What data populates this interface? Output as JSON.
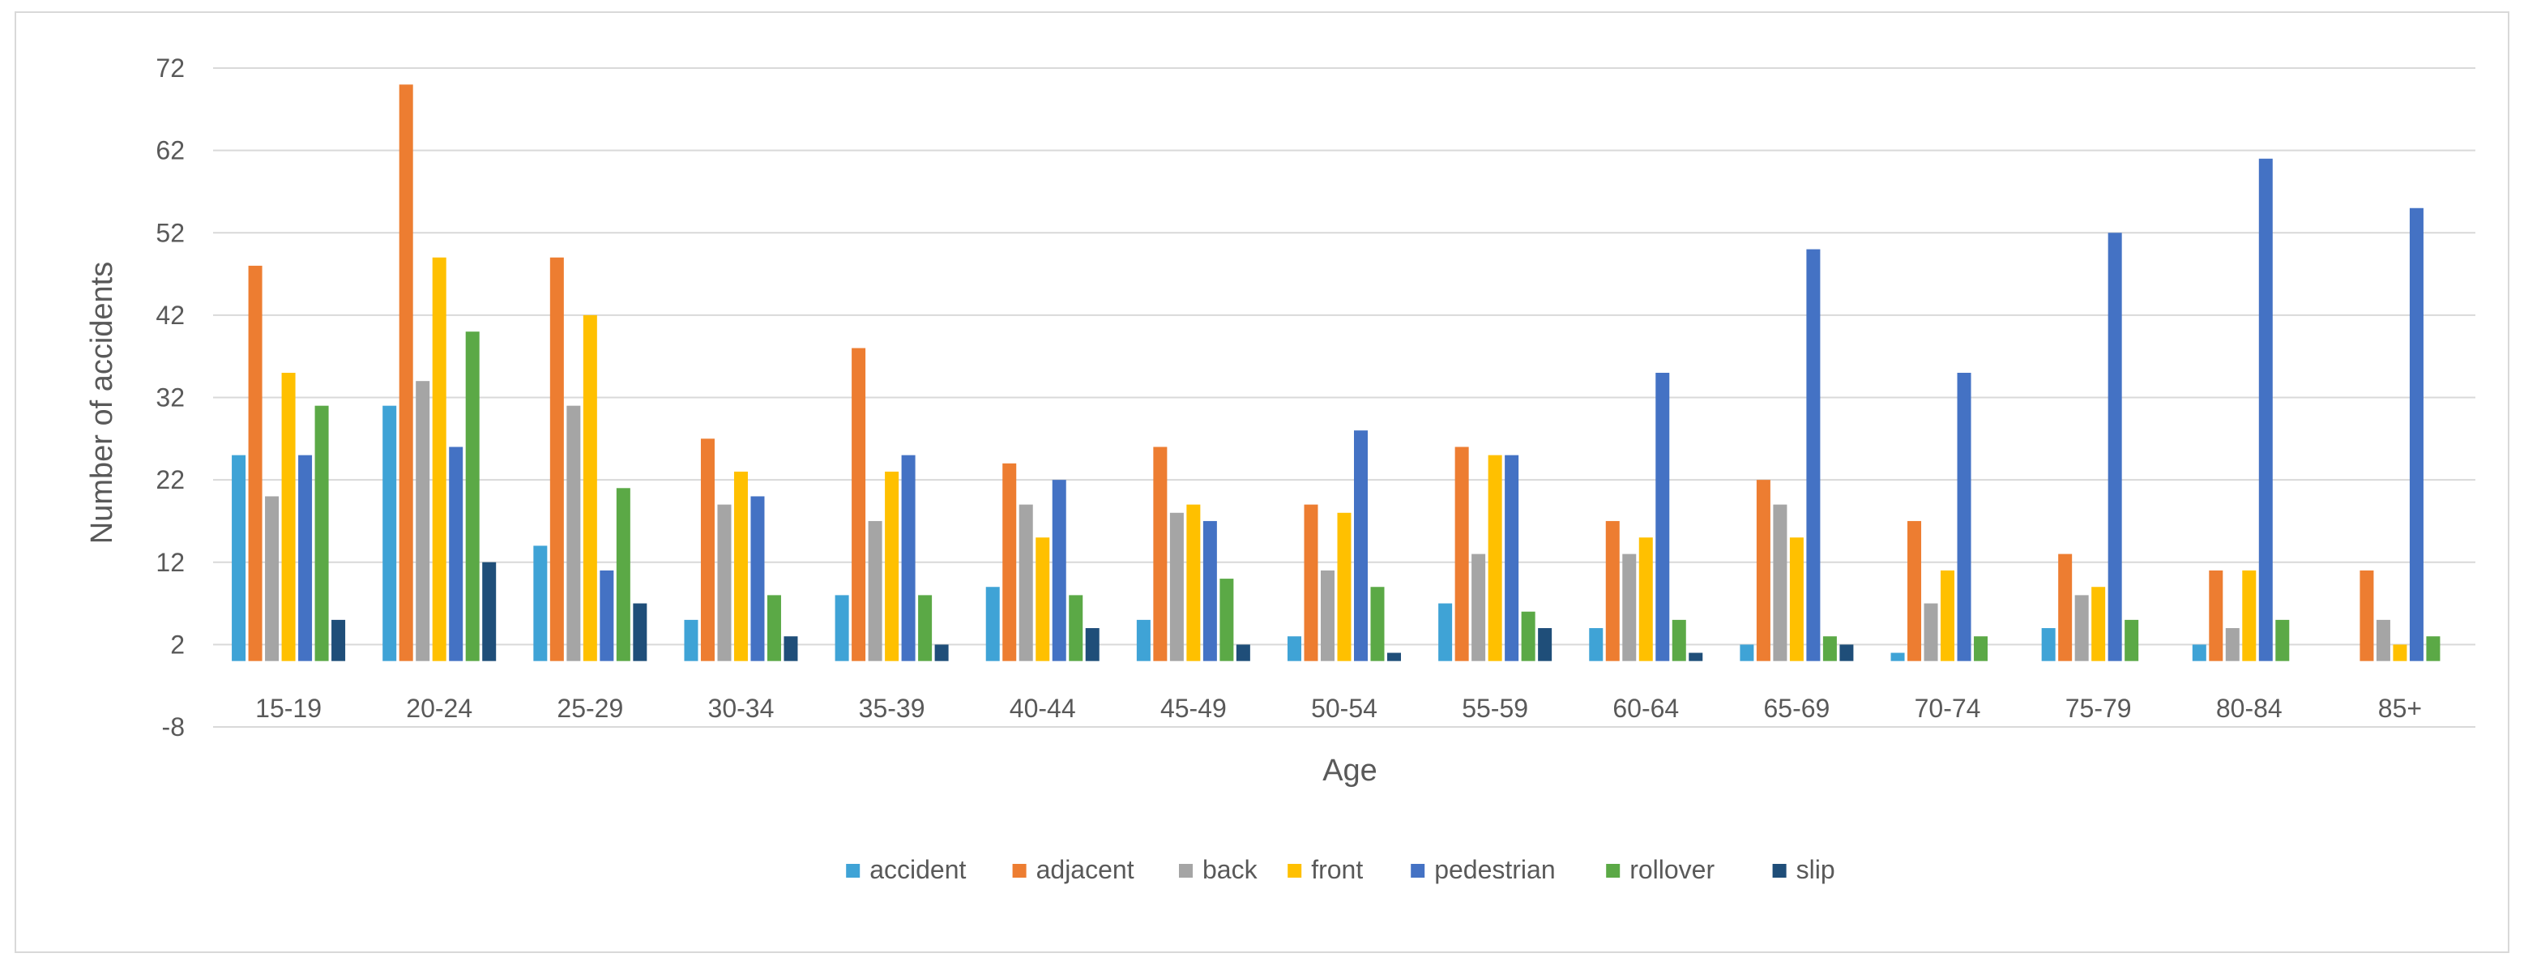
{
  "chart_data": {
    "type": "bar",
    "xlabel": "Age",
    "ylabel": "Number of accidents",
    "ylim": [
      -8,
      72
    ],
    "yticks": [
      -8,
      2,
      12,
      22,
      32,
      42,
      52,
      62,
      72
    ],
    "grid": true,
    "legend_position": "bottom",
    "categories": [
      "15-19",
      "20-24",
      "25-29",
      "30-34",
      "35-39",
      "40-44",
      "45-49",
      "50-54",
      "55-59",
      "60-64",
      "65-69",
      "70-74",
      "75-79",
      "80-84",
      "85+"
    ],
    "series": [
      {
        "name": "accident",
        "color": "#3fa3d6",
        "values": [
          25,
          31,
          14,
          5,
          8,
          9,
          5,
          3,
          7,
          4,
          2,
          1,
          4,
          2,
          0
        ]
      },
      {
        "name": "adjacent",
        "color": "#ed7d31",
        "values": [
          48,
          70,
          49,
          27,
          38,
          24,
          26,
          19,
          26,
          17,
          22,
          17,
          13,
          11,
          11
        ]
      },
      {
        "name": "back",
        "color": "#a5a5a5",
        "values": [
          20,
          34,
          31,
          19,
          17,
          19,
          18,
          11,
          13,
          13,
          19,
          7,
          8,
          4,
          5
        ]
      },
      {
        "name": "front",
        "color": "#ffc000",
        "values": [
          35,
          49,
          42,
          23,
          23,
          15,
          19,
          18,
          25,
          15,
          15,
          11,
          9,
          11,
          2
        ]
      },
      {
        "name": "pedestrian",
        "color": "#4472c4",
        "values": [
          25,
          26,
          11,
          20,
          25,
          22,
          17,
          28,
          25,
          35,
          50,
          35,
          52,
          61,
          55
        ]
      },
      {
        "name": "rollover",
        "color": "#5ba946",
        "values": [
          31,
          40,
          21,
          8,
          8,
          8,
          10,
          9,
          6,
          5,
          3,
          3,
          5,
          5,
          3
        ]
      },
      {
        "name": "slip",
        "color": "#1f4e79",
        "values": [
          5,
          12,
          7,
          3,
          2,
          4,
          2,
          1,
          4,
          1,
          2,
          0,
          0,
          0,
          0
        ]
      }
    ]
  }
}
